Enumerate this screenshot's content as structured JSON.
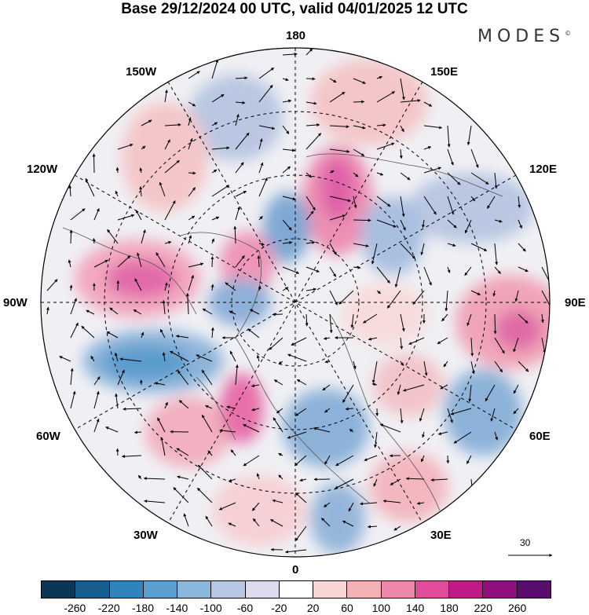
{
  "title": "Base 29/12/2024 00 UTC, valid 04/01/2025 12 UTC",
  "brand": "MODES",
  "brand_mark": "©",
  "longitude_labels": {
    "n180": "180",
    "e150": "150E",
    "e120": "120E",
    "e90": "90E",
    "e60": "60E",
    "e30": "30E",
    "s0": "0",
    "w30": "30W",
    "w60": "60W",
    "w90": "90W",
    "w120": "120W",
    "w150": "150W"
  },
  "reference_vector": {
    "value": "30",
    "icon": "arrow-right-icon"
  },
  "colorbar": {
    "colors": [
      "#0b3754",
      "#165f8e",
      "#2f84bd",
      "#5a9fcf",
      "#8bb6dc",
      "#b7c7e3",
      "#dcdcee",
      "#ffffff",
      "#f8d6d6",
      "#f2b1b5",
      "#ec86aa",
      "#e04b9b",
      "#c01a89",
      "#8e0f7d",
      "#5a0d6c"
    ],
    "labels": [
      "-260",
      "-220",
      "-180",
      "-140",
      "-100",
      "-60",
      "-20",
      "20",
      "60",
      "100",
      "140",
      "180",
      "220",
      "260"
    ]
  },
  "anomaly_centers": [
    {
      "name": "n-pacific-west",
      "sign": "positive",
      "strength": "weak"
    },
    {
      "name": "arctic-positive",
      "sign": "positive",
      "strength": "strong"
    },
    {
      "name": "siberia-negative",
      "sign": "negative",
      "strength": "moderate"
    },
    {
      "name": "central-asia-positive",
      "sign": "positive",
      "strength": "strong"
    },
    {
      "name": "east-europe-negative",
      "sign": "negative",
      "strength": "moderate"
    },
    {
      "name": "canada-positive",
      "sign": "positive",
      "strength": "strong"
    },
    {
      "name": "us-east-negative",
      "sign": "negative",
      "strength": "moderate"
    },
    {
      "name": "n-atlantic-positive",
      "sign": "positive",
      "strength": "strong"
    }
  ]
}
